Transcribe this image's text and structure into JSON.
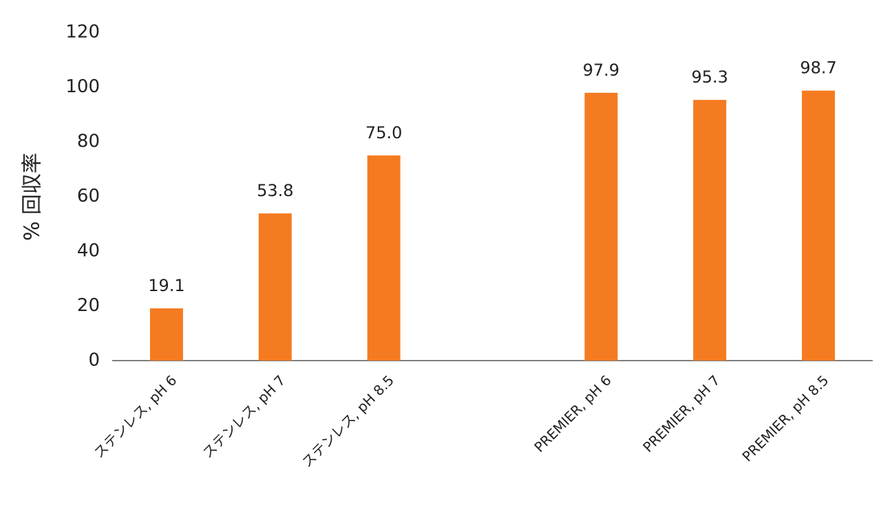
{
  "chart_data": {
    "type": "bar",
    "ylabel": "% 回収率",
    "categories": [
      "ステンレス, pH 6",
      "ステンレス, pH 7",
      "ステンレス, pH 8.5",
      null,
      "PREMIER, pH 6",
      "PREMIER, pH 7",
      "PREMIER, pH 8.5"
    ],
    "values": [
      19.1,
      53.8,
      75.0,
      null,
      97.9,
      95.3,
      98.7
    ],
    "value_labels": [
      "19.1",
      "53.8",
      "75.0",
      null,
      "97.9",
      "95.3",
      "98.7"
    ],
    "color": "#f47b20",
    "ylim": [
      0,
      120
    ],
    "yticks": [
      0,
      20,
      40,
      60,
      80,
      100,
      120
    ],
    "grid": false
  }
}
